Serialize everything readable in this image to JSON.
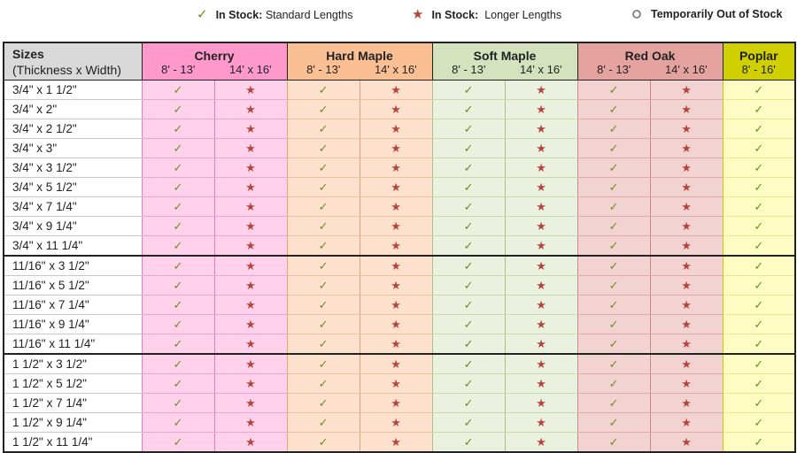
{
  "legend": [
    {
      "icon": "check-icon",
      "glyph": "✓",
      "bold": "In Stock:",
      "text": " Standard Lengths"
    },
    {
      "icon": "star-icon",
      "glyph": "★",
      "bold": "In Stock:",
      "text": "  Longer Lengths"
    },
    {
      "icon": "ring-icon",
      "glyph": "",
      "bold": "Temporarily Out of Stock",
      "text": ""
    }
  ],
  "header": {
    "sizes_title": "Sizes",
    "sizes_subtitle": "(Thickness x Width)",
    "species": [
      {
        "name": "Cherry",
        "color": "#ff99cc",
        "lengths": [
          "8' - 13'",
          "14' x 16'"
        ]
      },
      {
        "name": "Hard Maple",
        "color": "#fbbf94",
        "lengths": [
          "8' - 13'",
          "14' x 16'"
        ]
      },
      {
        "name": "Soft Maple",
        "color": "#d4e3bd",
        "lengths": [
          "8' - 13'",
          "14' x 16'"
        ]
      },
      {
        "name": "Red Oak",
        "color": "#e5a3a0",
        "lengths": [
          "8' - 13'",
          "14' x 16'"
        ]
      },
      {
        "name": "Poplar",
        "color": "#d0d000",
        "lengths": [
          "8' - 16'"
        ]
      }
    ]
  },
  "symbols": {
    "check": "✓",
    "star": "★"
  },
  "rows": [
    {
      "size": "3/4\" x 1 1/2\"",
      "group_end": false
    },
    {
      "size": "3/4\" x 2\"",
      "group_end": false
    },
    {
      "size": "3/4\" x 2 1/2\"",
      "group_end": false
    },
    {
      "size": "3/4\" x 3\"",
      "group_end": false
    },
    {
      "size": "3/4\" x 3 1/2\"",
      "group_end": false
    },
    {
      "size": "3/4\" x 5 1/2\"",
      "group_end": false
    },
    {
      "size": "3/4\" x 7 1/4\"",
      "group_end": false
    },
    {
      "size": "3/4\" x 9 1/4\"",
      "group_end": false
    },
    {
      "size": "3/4\" x 11 1/4\"",
      "group_end": true
    },
    {
      "size": "11/16\" x 3 1/2\"",
      "group_end": false
    },
    {
      "size": "11/16\" x 5 1/2\"",
      "group_end": false
    },
    {
      "size": "11/16\" x 7 1/4\"",
      "group_end": false
    },
    {
      "size": "11/16\" x 9 1/4\"",
      "group_end": false
    },
    {
      "size": "11/16\" x 11 1/4\"",
      "group_end": true
    },
    {
      "size": "1 1/2\" x 3 1/2\"",
      "group_end": false
    },
    {
      "size": "1 1/2\" x 5 1/2\"",
      "group_end": false
    },
    {
      "size": "1 1/2\" x 7 1/4\"",
      "group_end": false
    },
    {
      "size": "1 1/2\" x 9 1/4\"",
      "group_end": false
    },
    {
      "size": "1 1/2\" x 11 1/4\"",
      "group_end": false
    }
  ],
  "cell_pattern": [
    "check",
    "star",
    "check",
    "star",
    "check",
    "star",
    "check",
    "star",
    "check"
  ]
}
